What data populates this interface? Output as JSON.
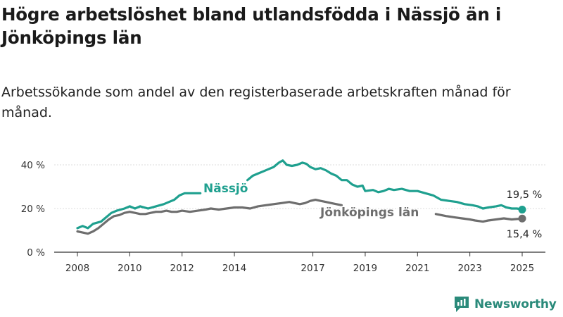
{
  "title": "Högre arbetslöshet bland utlandsfödda i Nässjö än i Jönköpings län",
  "subtitle": "Arbetssökande som andel av den registerbaserade arbetskraften månad för månad.",
  "brand": {
    "name": "Newsworthy",
    "color": "#2a8a7a"
  },
  "chart_data": {
    "type": "line",
    "ylim": [
      0,
      45
    ],
    "xlim": [
      2007.5,
      2025.75
    ],
    "y_ticks": [
      0,
      20,
      40
    ],
    "y_tick_labels": [
      "0 %",
      "20 %",
      "40 %"
    ],
    "x_ticks": [
      2008,
      2010,
      2012,
      2014,
      2017,
      2019,
      2021,
      2023,
      2025
    ],
    "x_tick_labels": [
      "2008",
      "2010",
      "2012",
      "2014",
      "2017",
      "2019",
      "2021",
      "2023",
      "2025"
    ],
    "grid": "horizontal",
    "series": [
      {
        "name": "Nässjö",
        "color": "#1fa08f",
        "end_label": "19,5 %",
        "points": [
          [
            2008.0,
            11
          ],
          [
            2008.2,
            12
          ],
          [
            2008.4,
            11
          ],
          [
            2008.6,
            13
          ],
          [
            2008.9,
            14
          ],
          [
            2009.1,
            16
          ],
          [
            2009.3,
            18
          ],
          [
            2009.5,
            19
          ],
          [
            2009.8,
            20
          ],
          [
            2010.0,
            21
          ],
          [
            2010.2,
            20
          ],
          [
            2010.4,
            21
          ],
          [
            2010.7,
            20
          ],
          [
            2011.0,
            21
          ],
          [
            2011.3,
            22
          ],
          [
            2011.5,
            23
          ],
          [
            2011.7,
            24
          ],
          [
            2011.9,
            26
          ],
          [
            2012.1,
            27
          ],
          [
            2012.3,
            27
          ],
          [
            2012.5,
            27
          ],
          [
            2012.7,
            27
          ],
          [
            null,
            null
          ],
          [
            2014.5,
            33
          ],
          [
            2014.7,
            35
          ],
          [
            2014.9,
            36
          ],
          [
            2015.1,
            37
          ],
          [
            2015.3,
            38
          ],
          [
            2015.5,
            39
          ],
          [
            2015.7,
            41
          ],
          [
            2015.85,
            42
          ],
          [
            2016.0,
            40
          ],
          [
            2016.2,
            39.5
          ],
          [
            2016.4,
            40
          ],
          [
            2016.6,
            41
          ],
          [
            2016.75,
            40.5
          ],
          [
            2016.9,
            39
          ],
          [
            2017.1,
            38
          ],
          [
            2017.3,
            38.5
          ],
          [
            2017.5,
            37.5
          ],
          [
            2017.7,
            36
          ],
          [
            2017.9,
            35
          ],
          [
            2018.1,
            33
          ],
          [
            2018.3,
            33
          ],
          [
            2018.5,
            31
          ],
          [
            2018.7,
            30
          ],
          [
            2018.9,
            30.5
          ],
          [
            2019.0,
            28
          ],
          [
            2019.3,
            28.5
          ],
          [
            2019.5,
            27.5
          ],
          [
            2019.7,
            28
          ],
          [
            2019.9,
            29
          ],
          [
            2020.1,
            28.5
          ],
          [
            2020.4,
            29
          ],
          [
            2020.7,
            28
          ],
          [
            2021.0,
            28
          ],
          [
            2021.3,
            27
          ],
          [
            2021.6,
            26
          ],
          [
            2021.9,
            24
          ],
          [
            2022.2,
            23.5
          ],
          [
            2022.5,
            23
          ],
          [
            2022.8,
            22
          ],
          [
            2023.1,
            21.5
          ],
          [
            2023.3,
            21
          ],
          [
            2023.5,
            20
          ],
          [
            2023.7,
            20.5
          ],
          [
            2024.0,
            21
          ],
          [
            2024.2,
            21.5
          ],
          [
            2024.4,
            20.5
          ],
          [
            2024.6,
            20
          ],
          [
            2024.8,
            20
          ],
          [
            2025.0,
            19.5
          ]
        ]
      },
      {
        "name": "Jönköpings län",
        "color": "#6e6e6e",
        "end_label": "15,4 %",
        "points": [
          [
            2008.0,
            9.5
          ],
          [
            2008.2,
            9
          ],
          [
            2008.4,
            8.5
          ],
          [
            2008.6,
            9.5
          ],
          [
            2008.8,
            11
          ],
          [
            2009.0,
            13
          ],
          [
            2009.2,
            15
          ],
          [
            2009.4,
            16.5
          ],
          [
            2009.6,
            17
          ],
          [
            2009.8,
            18
          ],
          [
            2010.0,
            18.5
          ],
          [
            2010.2,
            18
          ],
          [
            2010.4,
            17.5
          ],
          [
            2010.6,
            17.5
          ],
          [
            2010.8,
            18
          ],
          [
            2011.0,
            18.5
          ],
          [
            2011.2,
            18.5
          ],
          [
            2011.4,
            19
          ],
          [
            2011.6,
            18.5
          ],
          [
            2011.8,
            18.5
          ],
          [
            2012.0,
            19
          ],
          [
            2012.3,
            18.5
          ],
          [
            2012.6,
            19
          ],
          [
            2012.9,
            19.5
          ],
          [
            2013.1,
            20
          ],
          [
            2013.4,
            19.5
          ],
          [
            2013.7,
            20
          ],
          [
            2014.0,
            20.5
          ],
          [
            2014.3,
            20.5
          ],
          [
            2014.6,
            20
          ],
          [
            2014.9,
            21
          ],
          [
            2015.2,
            21.5
          ],
          [
            2015.5,
            22
          ],
          [
            2015.8,
            22.5
          ],
          [
            2016.1,
            23
          ],
          [
            2016.3,
            22.5
          ],
          [
            2016.5,
            22
          ],
          [
            2016.7,
            22.5
          ],
          [
            2016.9,
            23.5
          ],
          [
            2017.1,
            24
          ],
          [
            2017.3,
            23.5
          ],
          [
            2017.5,
            23
          ],
          [
            2017.7,
            22.5
          ],
          [
            2017.9,
            22
          ],
          [
            2018.1,
            21.5
          ],
          [
            null,
            null
          ],
          [
            2021.7,
            17.5
          ],
          [
            2021.9,
            17
          ],
          [
            2022.1,
            16.5
          ],
          [
            2022.4,
            16
          ],
          [
            2022.7,
            15.5
          ],
          [
            2023.0,
            15
          ],
          [
            2023.2,
            14.5
          ],
          [
            2023.5,
            14
          ],
          [
            2023.7,
            14.5
          ],
          [
            2024.0,
            15
          ],
          [
            2024.3,
            15.5
          ],
          [
            2024.6,
            15
          ],
          [
            2024.8,
            15.2
          ],
          [
            2025.0,
            15.4
          ]
        ]
      }
    ]
  }
}
